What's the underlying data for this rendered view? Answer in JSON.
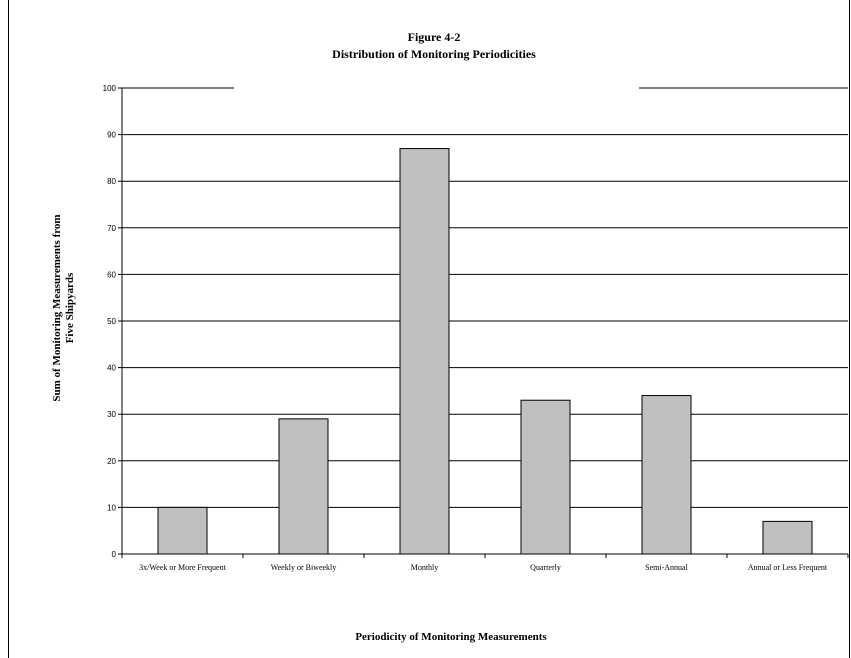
{
  "chart_data": {
    "type": "bar",
    "title": "Figure 4-2",
    "subtitle": "Distribution of Monitoring Periodicities",
    "xlabel": "Periodicity of Monitoring Measurements",
    "ylabel": [
      "Sum of Monitoring Measurements from",
      "Five Shipyards"
    ],
    "categories": [
      "3x/Week or More Frequent",
      "Weekly or Biweekly",
      "Monthly",
      "Quarterly",
      "Semi-Annual",
      "Annual or Less Frequent"
    ],
    "values": [
      10,
      29,
      87,
      33,
      34,
      7
    ],
    "ylim": [
      0,
      100
    ],
    "yticks": [
      0,
      10,
      20,
      30,
      40,
      50,
      60,
      70,
      80,
      90,
      100
    ],
    "grid": true,
    "legend": "none",
    "colors": {
      "bar_fill": "#c0c0c0",
      "bar_stroke": "#000000",
      "grid": "#000000"
    }
  }
}
